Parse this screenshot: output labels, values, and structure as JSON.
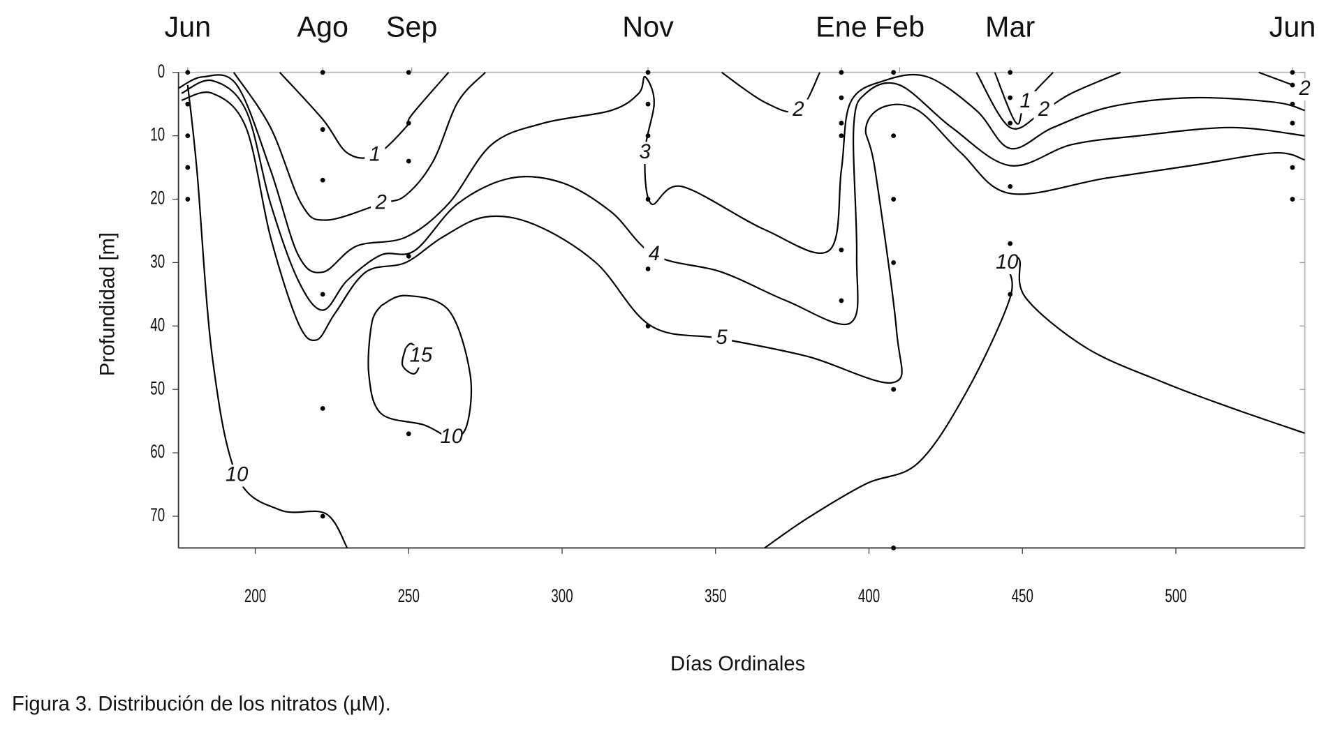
{
  "chart_data": {
    "type": "contour",
    "xlabel": "Días Ordinales",
    "ylabel": "Profundidad [m]",
    "caption": "Figura 3. Distribución de los nitratos (µM).",
    "xlim": [
      175,
      542
    ],
    "ylim": [
      0,
      75
    ],
    "y_inverted": true,
    "xticks": [
      200,
      250,
      300,
      350,
      400,
      450,
      500
    ],
    "yticks": [
      0,
      10,
      20,
      30,
      40,
      50,
      60,
      70
    ],
    "x2ticks": [
      {
        "value": 178,
        "label": "Jun"
      },
      {
        "value": 222,
        "label": "Ago"
      },
      {
        "value": 251,
        "label": "Sep"
      },
      {
        "value": 328,
        "label": "Nov"
      },
      {
        "value": 391,
        "label": "Ene"
      },
      {
        "value": 410,
        "label": "Feb"
      },
      {
        "value": 446,
        "label": "Mar"
      },
      {
        "value": 538,
        "label": "Jun"
      }
    ],
    "line_color": "#000000",
    "contours": [
      {
        "level": 10,
        "x": [
          178,
          181,
          186,
          194,
          208,
          223,
          230
        ],
        "y": [
          2,
          15.4,
          44.8,
          63.6,
          69,
          69.6,
          75
        ]
      },
      {
        "level": 5,
        "x": [
          176,
          186,
          197,
          205,
          214,
          220,
          226,
          236,
          249,
          261,
          275,
          291,
          311,
          329,
          352,
          380,
          408,
          409,
          402,
          399,
          405,
          416,
          430,
          446,
          477,
          505,
          532,
          542
        ],
        "y": [
          4.4,
          3.3,
          8.7,
          26,
          39.5,
          42.2,
          38,
          31.5,
          30,
          26,
          22.8,
          24,
          30,
          40,
          42,
          44.8,
          48.9,
          40.8,
          15.4,
          8.7,
          5.4,
          6,
          12.7,
          19.1,
          16.7,
          14.7,
          12.7,
          13.8
        ]
      },
      {
        "level": 4,
        "x": [
          176,
          186,
          197,
          205,
          214,
          222,
          230,
          241,
          252,
          266,
          283,
          300,
          316,
          330,
          352,
          373,
          394,
          396,
          395,
          399,
          410,
          427,
          446,
          466,
          488,
          518,
          542
        ],
        "y": [
          3.3,
          1.3,
          6,
          20.7,
          32.8,
          37.5,
          32.8,
          28.8,
          28.1,
          20.7,
          16.7,
          17.4,
          22,
          28.8,
          31.5,
          36,
          39.5,
          28.8,
          8.7,
          3.3,
          2,
          8.7,
          14.7,
          11.4,
          10,
          8.7,
          10
        ]
      },
      {
        "level": 3,
        "x": [
          175,
          183,
          194,
          205,
          214,
          222,
          233,
          249,
          263,
          277,
          294,
          316,
          325,
          327,
          330,
          327,
          329,
          339,
          366,
          387,
          391,
          394,
          405,
          419,
          435,
          446,
          460,
          479,
          505,
          532,
          542
        ],
        "y": [
          2.5,
          0.7,
          2,
          15.4,
          28.8,
          31.5,
          27.4,
          26,
          20.7,
          11.4,
          8,
          6,
          3.3,
          0.7,
          4.7,
          12.7,
          20.7,
          18,
          24.8,
          28.1,
          15.4,
          4.7,
          1.3,
          0.7,
          6,
          12,
          8.7,
          5.4,
          4,
          4.7,
          6
        ]
      },
      {
        "level": 2,
        "x": [
          193,
          205,
          215,
          223,
          241,
          249,
          258,
          266,
          275
        ],
        "y": [
          0,
          8.7,
          20.7,
          23.3,
          20.7,
          19.4,
          14,
          4.7,
          0
        ]
      },
      {
        "level": 2,
        "x": [
          352,
          366,
          377,
          384
        ],
        "y": [
          0,
          4.7,
          6,
          0
        ]
      },
      {
        "level": 2,
        "x": [
          435,
          446,
          457,
          466,
          482
        ],
        "y": [
          0,
          8.7,
          6,
          3.3,
          0
        ]
      },
      {
        "level": 2,
        "x": [
          527,
          542
        ],
        "y": [
          0,
          2.7
        ]
      },
      {
        "level": 1,
        "x": [
          208,
          222,
          230,
          239,
          249,
          251,
          263
        ],
        "y": [
          0,
          7.4,
          12.7,
          13.1,
          8.7,
          6.7,
          0
        ]
      },
      {
        "level": 1,
        "x": [
          441,
          448,
          451,
          460
        ],
        "y": [
          0,
          8,
          4.7,
          0
        ]
      },
      {
        "level": 15,
        "x": [
          249,
          248,
          252,
          254,
          251,
          249
        ],
        "y": [
          43.5,
          46.2,
          47.5,
          44.8,
          42.8,
          43.5
        ]
      },
      {
        "level": 10,
        "x": [
          241,
          249,
          263,
          270,
          269,
          264,
          255,
          241,
          237,
          238,
          241
        ],
        "y": [
          36.8,
          35.2,
          37.5,
          47.5,
          55.6,
          57.6,
          55.6,
          53.8,
          47.5,
          39.5,
          36.8
        ]
      },
      {
        "level": 10,
        "x": [
          366,
          380,
          399,
          416,
          432,
          446,
          445,
          449,
          451,
          471,
          496,
          518,
          542
        ],
        "y": [
          75,
          70.3,
          64.9,
          61.6,
          50.2,
          35.5,
          30.1,
          29.5,
          35.5,
          43.5,
          48.9,
          52.9,
          56.9
        ]
      }
    ],
    "stations": {
      "x": [
        178,
        178,
        178,
        178,
        178,
        222,
        222,
        222,
        222,
        222,
        222,
        250,
        250,
        250,
        250,
        250,
        328,
        328,
        328,
        328,
        328,
        328,
        391,
        391,
        391,
        391,
        391,
        391,
        408,
        408,
        408,
        408,
        408,
        408,
        446,
        446,
        446,
        446,
        446,
        446,
        538,
        538,
        538,
        538,
        538,
        538
      ],
      "y": [
        0,
        5,
        10,
        15,
        20,
        0,
        9,
        17,
        35,
        53,
        70,
        0,
        8,
        14,
        29,
        57,
        0,
        5,
        10,
        20,
        31,
        40,
        0,
        4,
        8,
        10,
        28,
        36,
        0,
        10,
        20,
        30,
        50,
        75,
        0,
        4,
        8,
        18,
        27,
        35,
        0,
        2,
        5,
        8,
        15,
        20
      ]
    }
  }
}
